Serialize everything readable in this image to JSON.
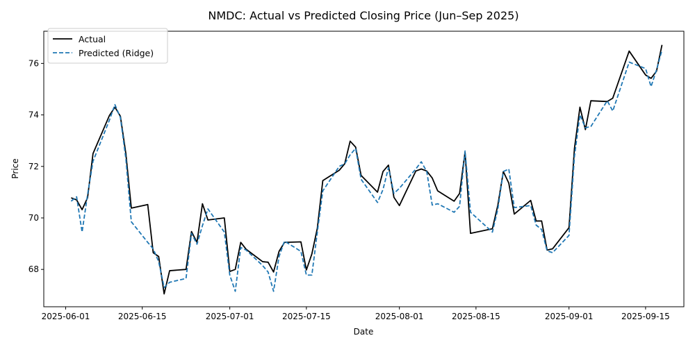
{
  "chart_data": {
    "type": "line",
    "title": "NMDC: Actual vs Predicted Closing Price (Jun–Sep 2025)",
    "xlabel": "Date",
    "ylabel": "Price",
    "xlim": [
      "2025-05-28",
      "2025-09-22"
    ],
    "ylim": [
      66.55,
      77.25
    ],
    "x_ticks": [
      "2025-06-01",
      "2025-06-15",
      "2025-07-01",
      "2025-07-15",
      "2025-08-01",
      "2025-08-15",
      "2025-09-01",
      "2025-09-15"
    ],
    "y_ticks": [
      68,
      70,
      72,
      74,
      76
    ],
    "legend_position": "top-left",
    "grid": false,
    "series": [
      {
        "name": "Actual",
        "color": "#000000",
        "style": "solid",
        "points": [
          [
            "2025-06-02",
            70.78
          ],
          [
            "2025-06-03",
            70.7
          ],
          [
            "2025-06-04",
            70.32
          ],
          [
            "2025-06-05",
            70.78
          ],
          [
            "2025-06-06",
            72.5
          ],
          [
            "2025-06-09",
            73.98
          ],
          [
            "2025-06-10",
            74.3
          ],
          [
            "2025-06-11",
            73.95
          ],
          [
            "2025-06-12",
            72.5
          ],
          [
            "2025-06-13",
            70.38
          ],
          [
            "2025-06-16",
            70.52
          ],
          [
            "2025-06-17",
            68.65
          ],
          [
            "2025-06-18",
            68.5
          ],
          [
            "2025-06-19",
            67.05
          ],
          [
            "2025-06-20",
            67.95
          ],
          [
            "2025-06-23",
            68.0
          ],
          [
            "2025-06-24",
            69.47
          ],
          [
            "2025-06-25",
            69.05
          ],
          [
            "2025-06-26",
            70.55
          ],
          [
            "2025-06-27",
            69.92
          ],
          [
            "2025-06-30",
            70.0
          ],
          [
            "2025-07-01",
            67.92
          ],
          [
            "2025-07-02",
            68.0
          ],
          [
            "2025-07-03",
            69.05
          ],
          [
            "2025-07-04",
            68.78
          ],
          [
            "2025-07-07",
            68.3
          ],
          [
            "2025-07-08",
            68.28
          ],
          [
            "2025-07-09",
            67.9
          ],
          [
            "2025-07-10",
            68.7
          ],
          [
            "2025-07-11",
            69.05
          ],
          [
            "2025-07-14",
            69.07
          ],
          [
            "2025-07-15",
            67.98
          ],
          [
            "2025-07-16",
            68.6
          ],
          [
            "2025-07-17",
            69.6
          ],
          [
            "2025-07-18",
            71.45
          ],
          [
            "2025-07-21",
            71.85
          ],
          [
            "2025-07-22",
            72.1
          ],
          [
            "2025-07-23",
            72.98
          ],
          [
            "2025-07-24",
            72.75
          ],
          [
            "2025-07-25",
            71.65
          ],
          [
            "2025-07-28",
            71.0
          ],
          [
            "2025-07-29",
            71.8
          ],
          [
            "2025-07-30",
            72.05
          ],
          [
            "2025-07-31",
            70.8
          ],
          [
            "2025-08-01",
            70.48
          ],
          [
            "2025-08-04",
            71.82
          ],
          [
            "2025-08-05",
            71.9
          ],
          [
            "2025-08-06",
            71.82
          ],
          [
            "2025-08-07",
            71.55
          ],
          [
            "2025-08-08",
            71.05
          ],
          [
            "2025-08-11",
            70.65
          ],
          [
            "2025-08-12",
            70.95
          ],
          [
            "2025-08-13",
            72.55
          ],
          [
            "2025-08-14",
            69.4
          ],
          [
            "2025-08-18",
            69.58
          ],
          [
            "2025-08-19",
            70.5
          ],
          [
            "2025-08-20",
            71.8
          ],
          [
            "2025-08-21",
            71.35
          ],
          [
            "2025-08-22",
            70.15
          ],
          [
            "2025-08-25",
            70.68
          ],
          [
            "2025-08-26",
            69.88
          ],
          [
            "2025-08-27",
            69.88
          ],
          [
            "2025-08-28",
            68.75
          ],
          [
            "2025-08-29",
            68.8
          ],
          [
            "2025-09-01",
            69.62
          ],
          [
            "2025-09-02",
            72.7
          ],
          [
            "2025-09-03",
            74.3
          ],
          [
            "2025-09-04",
            73.43
          ],
          [
            "2025-09-05",
            74.55
          ],
          [
            "2025-09-08",
            74.52
          ],
          [
            "2025-09-09",
            74.65
          ],
          [
            "2025-09-12",
            76.48
          ],
          [
            "2025-09-15",
            75.55
          ],
          [
            "2025-09-16",
            75.42
          ],
          [
            "2025-09-17",
            75.7
          ],
          [
            "2025-09-18",
            76.72
          ]
        ]
      },
      {
        "name": "Predicted (Ridge)",
        "color": "#1f77b4",
        "style": "dashed",
        "points": [
          [
            "2025-06-02",
            70.65
          ],
          [
            "2025-06-03",
            70.82
          ],
          [
            "2025-06-04",
            69.45
          ],
          [
            "2025-06-05",
            70.9
          ],
          [
            "2025-06-06",
            72.2
          ],
          [
            "2025-06-09",
            73.8
          ],
          [
            "2025-06-10",
            74.4
          ],
          [
            "2025-06-11",
            73.9
          ],
          [
            "2025-06-12",
            72.3
          ],
          [
            "2025-06-13",
            69.85
          ],
          [
            "2025-06-16",
            69.05
          ],
          [
            "2025-06-17",
            68.8
          ],
          [
            "2025-06-18",
            68.3
          ],
          [
            "2025-06-19",
            67.3
          ],
          [
            "2025-06-20",
            67.5
          ],
          [
            "2025-06-23",
            67.65
          ],
          [
            "2025-06-24",
            69.4
          ],
          [
            "2025-06-25",
            68.98
          ],
          [
            "2025-06-26",
            69.7
          ],
          [
            "2025-06-27",
            70.35
          ],
          [
            "2025-06-30",
            69.45
          ],
          [
            "2025-07-01",
            67.78
          ],
          [
            "2025-07-02",
            67.15
          ],
          [
            "2025-07-03",
            68.85
          ],
          [
            "2025-07-04",
            68.75
          ],
          [
            "2025-07-07",
            68.15
          ],
          [
            "2025-07-08",
            67.9
          ],
          [
            "2025-07-09",
            67.15
          ],
          [
            "2025-07-10",
            68.5
          ],
          [
            "2025-07-11",
            69.1
          ],
          [
            "2025-07-14",
            68.7
          ],
          [
            "2025-07-15",
            67.78
          ],
          [
            "2025-07-16",
            67.78
          ],
          [
            "2025-07-17",
            69.45
          ],
          [
            "2025-07-18",
            71.05
          ],
          [
            "2025-07-21",
            72.0
          ],
          [
            "2025-07-22",
            72.1
          ],
          [
            "2025-07-23",
            72.45
          ],
          [
            "2025-07-24",
            72.7
          ],
          [
            "2025-07-25",
            71.5
          ],
          [
            "2025-07-28",
            70.6
          ],
          [
            "2025-07-29",
            71.1
          ],
          [
            "2025-07-30",
            71.95
          ],
          [
            "2025-07-31",
            70.95
          ],
          [
            "2025-08-01",
            71.15
          ],
          [
            "2025-08-04",
            71.9
          ],
          [
            "2025-08-05",
            72.18
          ],
          [
            "2025-08-06",
            71.8
          ],
          [
            "2025-08-07",
            70.5
          ],
          [
            "2025-08-08",
            70.55
          ],
          [
            "2025-08-11",
            70.22
          ],
          [
            "2025-08-12",
            70.45
          ],
          [
            "2025-08-13",
            72.6
          ],
          [
            "2025-08-14",
            70.22
          ],
          [
            "2025-08-18",
            69.45
          ],
          [
            "2025-08-19",
            70.35
          ],
          [
            "2025-08-20",
            71.8
          ],
          [
            "2025-08-21",
            71.9
          ],
          [
            "2025-08-22",
            70.4
          ],
          [
            "2025-08-25",
            70.48
          ],
          [
            "2025-08-26",
            69.72
          ],
          [
            "2025-08-27",
            69.55
          ],
          [
            "2025-08-28",
            68.72
          ],
          [
            "2025-08-29",
            68.65
          ],
          [
            "2025-09-01",
            69.32
          ],
          [
            "2025-09-02",
            72.4
          ],
          [
            "2025-09-03",
            74.0
          ],
          [
            "2025-09-04",
            73.5
          ],
          [
            "2025-09-05",
            73.55
          ],
          [
            "2025-09-08",
            74.55
          ],
          [
            "2025-09-09",
            74.15
          ],
          [
            "2025-09-12",
            76.05
          ],
          [
            "2025-09-15",
            75.8
          ],
          [
            "2025-09-16",
            75.1
          ],
          [
            "2025-09-17",
            75.75
          ],
          [
            "2025-09-18",
            76.52
          ]
        ]
      }
    ]
  }
}
